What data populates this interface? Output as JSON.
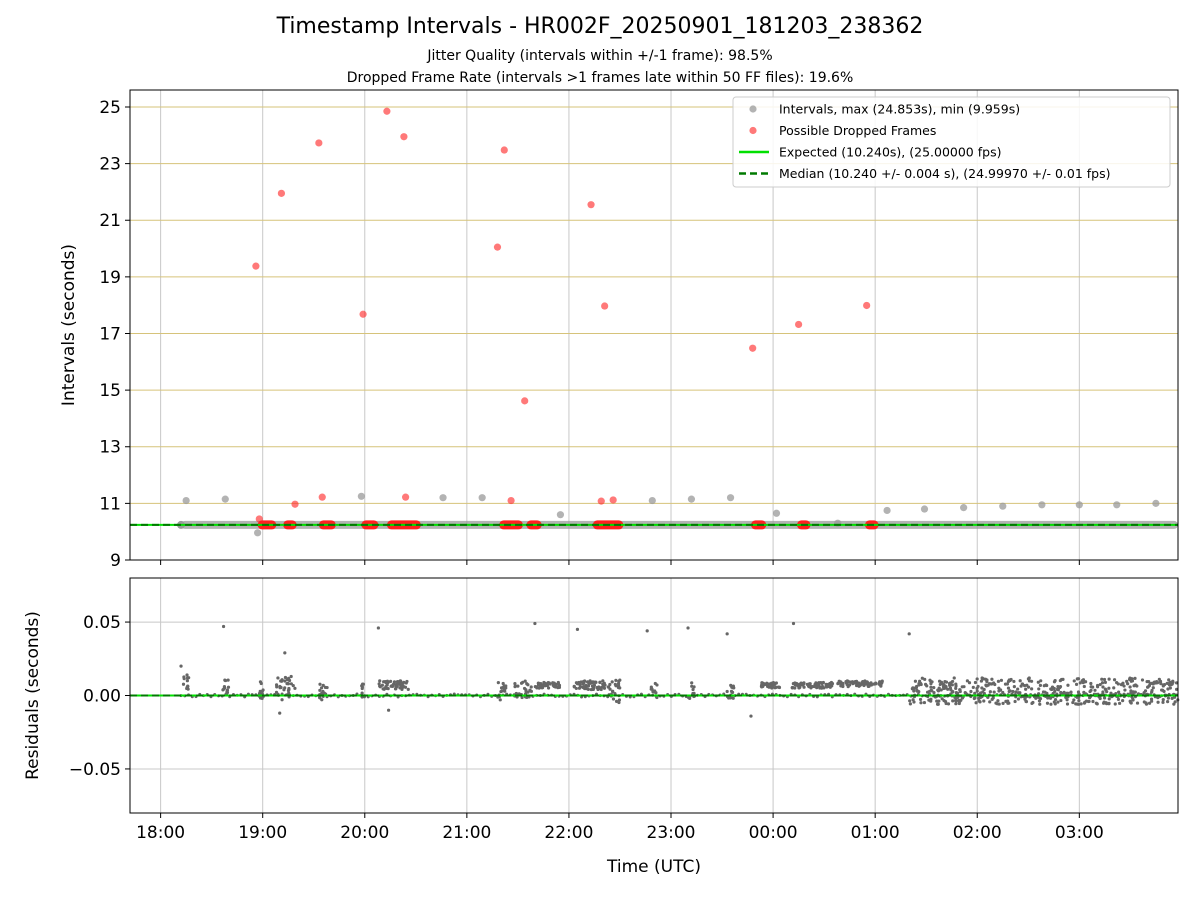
{
  "header": {
    "title": "Timestamp Intervals - HR002F_20250901_181203_238362",
    "subtitle_1": "Jitter Quality (intervals within +/-1 frame): 98.5%",
    "subtitle_2": "Dropped Frame Rate (intervals >1 frames late within 50 FF files): 19.6%"
  },
  "colors": {
    "intervals": "#9a9a9a",
    "dropped": "#ff2020",
    "expected": "#00e000",
    "median": "#007a00",
    "grid_top": "#d6c37a",
    "grid_bottom": "#c8c8c8",
    "residuals": "#666666"
  },
  "chart_data": [
    {
      "type": "scatter",
      "name": "intervals-panel",
      "xlabel": "",
      "ylabel": "Intervals (seconds)",
      "x_axis": "time",
      "xlim": [
        "17:42",
        "03:58"
      ],
      "ylim": [
        9,
        25.6
      ],
      "yticks": [
        9,
        11,
        13,
        15,
        17,
        19,
        21,
        23,
        25
      ],
      "grid": true,
      "legend": {
        "position": "top-right",
        "entries": [
          "Intervals, max (24.853s), min (9.959s)",
          "Possible Dropped Frames",
          "Expected (10.240s), (25.00000 fps)",
          "Median (10.240 +/- 0.004 s), (24.99970 +/- 0.01 fps)"
        ]
      },
      "expected_value": 10.24,
      "median_value": 10.24,
      "baseline": {
        "y": 10.24,
        "x_start": "18:12",
        "x_end": "03:58"
      },
      "intervals_outliers": [
        {
          "x": "18:15",
          "y": 11.1
        },
        {
          "x": "18:38",
          "y": 11.15
        },
        {
          "x": "18:57",
          "y": 9.96
        },
        {
          "x": "19:58",
          "y": 11.25
        },
        {
          "x": "20:46",
          "y": 11.2
        },
        {
          "x": "21:09",
          "y": 11.2
        },
        {
          "x": "21:55",
          "y": 10.6
        },
        {
          "x": "22:49",
          "y": 11.1
        },
        {
          "x": "23:12",
          "y": 11.15
        },
        {
          "x": "23:35",
          "y": 11.2
        },
        {
          "x": "00:02",
          "y": 10.65
        },
        {
          "x": "00:38",
          "y": 10.3
        },
        {
          "x": "01:07",
          "y": 10.75
        },
        {
          "x": "01:29",
          "y": 10.8
        },
        {
          "x": "01:52",
          "y": 10.85
        },
        {
          "x": "02:15",
          "y": 10.9
        },
        {
          "x": "02:38",
          "y": 10.95
        },
        {
          "x": "03:00",
          "y": 10.95
        },
        {
          "x": "03:22",
          "y": 10.95
        },
        {
          "x": "03:45",
          "y": 11.0
        }
      ],
      "dropped_frames": [
        {
          "x": "18:56",
          "y": 19.38
        },
        {
          "x": "18:58",
          "y": 10.45
        },
        {
          "x": "19:11",
          "y": 21.95
        },
        {
          "x": "19:19",
          "y": 10.97
        },
        {
          "x": "19:33",
          "y": 23.73
        },
        {
          "x": "19:35",
          "y": 11.22
        },
        {
          "x": "19:59",
          "y": 17.68
        },
        {
          "x": "20:13",
          "y": 24.85
        },
        {
          "x": "20:23",
          "y": 23.95
        },
        {
          "x": "20:24",
          "y": 11.22
        },
        {
          "x": "21:18",
          "y": 20.05
        },
        {
          "x": "21:22",
          "y": 23.48
        },
        {
          "x": "21:26",
          "y": 11.1
        },
        {
          "x": "21:34",
          "y": 14.62
        },
        {
          "x": "22:13",
          "y": 21.55
        },
        {
          "x": "22:19",
          "y": 11.08
        },
        {
          "x": "22:21",
          "y": 17.97
        },
        {
          "x": "22:26",
          "y": 11.12
        },
        {
          "x": "23:48",
          "y": 16.48
        },
        {
          "x": "00:15",
          "y": 17.32
        },
        {
          "x": "00:55",
          "y": 17.99
        }
      ],
      "dropped_clusters": [
        {
          "x_start": "18:57",
          "x_end": "19:08",
          "y": 10.24
        },
        {
          "x_start": "19:12",
          "x_end": "19:20",
          "y": 10.24
        },
        {
          "x_start": "19:33",
          "x_end": "19:43",
          "y": 10.24
        },
        {
          "x_start": "19:58",
          "x_end": "20:08",
          "y": 10.24
        },
        {
          "x_start": "20:13",
          "x_end": "20:33",
          "y": 10.24
        },
        {
          "x_start": "21:19",
          "x_end": "21:33",
          "y": 10.24
        },
        {
          "x_start": "21:35",
          "x_end": "21:44",
          "y": 10.24
        },
        {
          "x_start": "22:14",
          "x_end": "22:32",
          "y": 10.24
        },
        {
          "x_start": "23:47",
          "x_end": "23:56",
          "y": 10.24
        },
        {
          "x_start": "00:14",
          "x_end": "00:22",
          "y": 10.24
        },
        {
          "x_start": "00:54",
          "x_end": "01:02",
          "y": 10.24
        }
      ]
    },
    {
      "type": "scatter",
      "name": "residuals-panel",
      "xlabel": "Time (UTC)",
      "ylabel": "Residuals (seconds)",
      "x_axis": "time",
      "xlim": [
        "17:42",
        "03:58"
      ],
      "ylim": [
        -0.08,
        0.08
      ],
      "yticks": [
        0.05,
        0.0,
        -0.05
      ],
      "ytick_labels": [
        "0.05",
        "0.00",
        "−0.05"
      ],
      "xticks": [
        "18:00",
        "19:00",
        "20:00",
        "21:00",
        "22:00",
        "23:00",
        "00:00",
        "01:00",
        "02:00",
        "03:00"
      ],
      "grid": true,
      "zero_line": 0.0,
      "outliers": [
        {
          "x": "18:12",
          "y": 0.02
        },
        {
          "x": "18:37",
          "y": 0.047
        },
        {
          "x": "19:13",
          "y": 0.029
        },
        {
          "x": "20:08",
          "y": 0.046
        },
        {
          "x": "21:40",
          "y": 0.049
        },
        {
          "x": "22:05",
          "y": 0.045
        },
        {
          "x": "22:46",
          "y": 0.044
        },
        {
          "x": "23:10",
          "y": 0.046
        },
        {
          "x": "23:33",
          "y": 0.042
        },
        {
          "x": "00:12",
          "y": 0.049
        },
        {
          "x": "01:20",
          "y": 0.042
        },
        {
          "x": "23:47",
          "y": -0.014
        },
        {
          "x": "19:10",
          "y": -0.012
        },
        {
          "x": "20:14",
          "y": -0.01
        }
      ],
      "segments": [
        {
          "x_start": "18:13",
          "x_end": "18:17",
          "level": 0.008,
          "spread": 0.006
        },
        {
          "x_start": "18:36",
          "x_end": "18:40",
          "level": 0.006,
          "spread": 0.006
        },
        {
          "x_start": "18:57",
          "x_end": "19:01",
          "level": 0.004,
          "spread": 0.006
        },
        {
          "x_start": "19:08",
          "x_end": "19:19",
          "level": 0.005,
          "spread": 0.008
        },
        {
          "x_start": "19:33",
          "x_end": "19:38",
          "level": 0.003,
          "spread": 0.006
        },
        {
          "x_start": "19:58",
          "x_end": "20:00",
          "level": 0.002,
          "spread": 0.006
        },
        {
          "x_start": "20:08",
          "x_end": "20:26",
          "level": 0.007,
          "spread": 0.003
        },
        {
          "x_start": "21:18",
          "x_end": "21:23",
          "level": 0.003,
          "spread": 0.006
        },
        {
          "x_start": "21:28",
          "x_end": "21:38",
          "level": 0.004,
          "spread": 0.006
        },
        {
          "x_start": "21:40",
          "x_end": "21:55",
          "level": 0.007,
          "spread": 0.002
        },
        {
          "x_start": "22:03",
          "x_end": "22:22",
          "level": 0.007,
          "spread": 0.003
        },
        {
          "x_start": "22:22",
          "x_end": "22:30",
          "level": 0.003,
          "spread": 0.008
        },
        {
          "x_start": "22:48",
          "x_end": "22:52",
          "level": 0.004,
          "spread": 0.006
        },
        {
          "x_start": "23:10",
          "x_end": "23:14",
          "level": 0.003,
          "spread": 0.006
        },
        {
          "x_start": "23:33",
          "x_end": "23:37",
          "level": 0.003,
          "spread": 0.005
        },
        {
          "x_start": "23:53",
          "x_end": "00:05",
          "level": 0.007,
          "spread": 0.002
        },
        {
          "x_start": "00:11",
          "x_end": "00:35",
          "level": 0.007,
          "spread": 0.002
        },
        {
          "x_start": "00:38",
          "x_end": "01:05",
          "level": 0.008,
          "spread": 0.002
        },
        {
          "x_start": "01:20",
          "x_end": "03:58",
          "level": 0.003,
          "spread": 0.009
        }
      ]
    }
  ]
}
